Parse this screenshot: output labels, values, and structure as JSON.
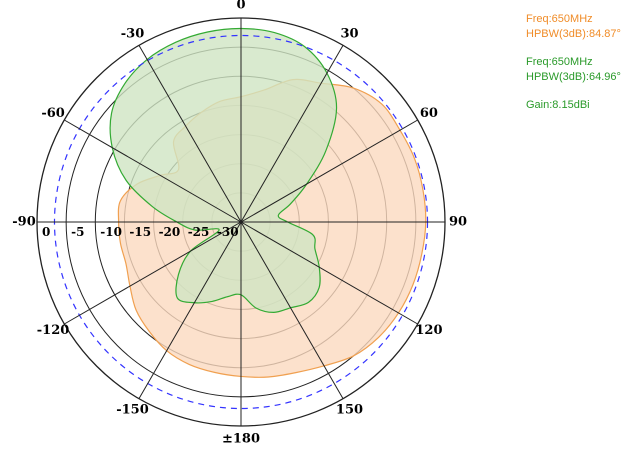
{
  "chart_data": {
    "type": "polar",
    "angle_ticks": [
      "0",
      "30",
      "60",
      "90",
      "120",
      "150",
      "±180",
      "-150",
      "-120",
      "-90",
      "-60",
      "-30"
    ],
    "radial_ticks": [
      "0",
      "-5",
      "-10",
      "-15",
      "-20",
      "-25",
      "-30"
    ],
    "r_range_dB": [
      -35,
      0
    ],
    "reference_circle_dB": -3,
    "reference_color": "#3333ff",
    "series": [
      {
        "color": "#f0a050",
        "fill": "#fbd9bf",
        "angles_deg": [
          0,
          10,
          20,
          30,
          40,
          50,
          60,
          70,
          80,
          90,
          100,
          110,
          120,
          130,
          140,
          150,
          160,
          170,
          180,
          -170,
          -160,
          -150,
          -140,
          -130,
          -120,
          -110,
          -100,
          -90,
          -80,
          -70,
          -60,
          -50,
          -40,
          -30,
          -20,
          -10
        ],
        "gain_dB": [
          -13.5,
          -12,
          -9,
          -7.5,
          -5,
          -3.5,
          -3.5,
          -3.3,
          -3.3,
          -3.3,
          -3.5,
          -3.6,
          -3.8,
          -4.2,
          -5,
          -6.5,
          -7.5,
          -8,
          -8.5,
          -8.8,
          -9,
          -9.5,
          -10.5,
          -11.5,
          -13,
          -14,
          -14,
          -14,
          -14,
          -16,
          -19,
          -21,
          -17,
          -16,
          -15,
          -14
        ]
      },
      {
        "color": "#33aa33",
        "fill": "#cfe5c3",
        "angles_deg": [
          0,
          10,
          20,
          30,
          40,
          50,
          60,
          70,
          80,
          90,
          100,
          110,
          120,
          130,
          140,
          150,
          160,
          170,
          180,
          -170,
          -160,
          -150,
          -140,
          -130,
          -120,
          -110,
          -100,
          -90,
          -80,
          -70,
          -60,
          -50,
          -40,
          -30,
          -20,
          -10
        ],
        "gain_dB": [
          -1.8,
          -2,
          -3,
          -5.5,
          -9.5,
          -16,
          -22,
          -26,
          -28.5,
          -27,
          -22.5,
          -21.5,
          -19.5,
          -17.5,
          -17,
          -18,
          -18.5,
          -20,
          -22.5,
          -22,
          -20.5,
          -19,
          -18,
          -21,
          -25,
          -31,
          -27,
          -24,
          -19.5,
          -14,
          -9.5,
          -6,
          -4,
          -2.8,
          -2.2,
          -1.9
        ]
      }
    ]
  },
  "legend": {
    "entries": [
      {
        "color": "#f08c28",
        "lines": [
          "Freq:650MHz",
          "HPBW(3dB):84.87°"
        ]
      },
      {
        "color": "#2a9a2a",
        "lines": [
          "Freq:650MHz",
          "HPBW(3dB):64.96°"
        ]
      },
      {
        "color": "#2a9a2a",
        "lines": [
          "Gain:8.15dBi"
        ]
      }
    ]
  }
}
